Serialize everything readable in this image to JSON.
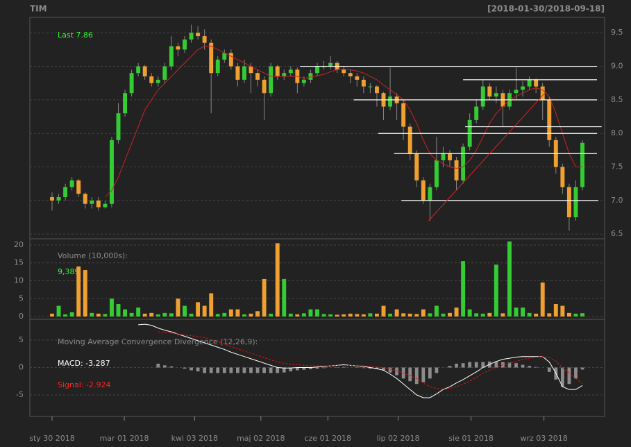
{
  "chart_data": [
    {
      "type": "candlestick",
      "title": "TIM",
      "subtitle": "[2018-01-30/2018-09-18]",
      "annotation": "Last 7.86",
      "up_color": "#33cc33",
      "down_color": "#f0a030",
      "sma_color": "#cc2222",
      "hline_color": "#ffffff",
      "trend_color": "#dd2222",
      "grid": true,
      "xlim": [
        -3.35,
        83.35
      ],
      "ylim": [
        6.44,
        9.73
      ],
      "yticks": [
        6.5,
        {
          "value": 7,
          "label": "7.0"
        },
        7.5,
        {
          "value": 8,
          "label": "8.0"
        },
        8.5,
        {
          "value": 9,
          "label": "9.0"
        },
        9.5
      ],
      "open": [
        7.05,
        7.0,
        7.05,
        7.2,
        7.3,
        7.1,
        6.95,
        7.0,
        6.9,
        6.95,
        7.9,
        8.3,
        8.6,
        8.9,
        9.0,
        8.85,
        8.75,
        8.8,
        9.0,
        9.3,
        9.25,
        9.4,
        9.5,
        9.45,
        9.35,
        8.9,
        9.1,
        9.2,
        9.0,
        8.8,
        9.0,
        8.9,
        8.8,
        8.6,
        9.0,
        8.85,
        8.9,
        8.95,
        8.75,
        8.8,
        8.9,
        9.0,
        9.0,
        9.05,
        8.95,
        8.9,
        8.85,
        8.8,
        8.7,
        8.7,
        8.6,
        8.4,
        8.55,
        8.45,
        8.1,
        7.7,
        7.3,
        7.0,
        7.2,
        7.6,
        7.7,
        7.6,
        7.3,
        7.8,
        8.2,
        8.4,
        8.7,
        8.55,
        8.6,
        8.4,
        8.6,
        8.65,
        8.7,
        8.8,
        8.7,
        8.5,
        7.9,
        7.5,
        7.2,
        6.75,
        7.2
      ],
      "high": [
        7.12,
        7.1,
        7.25,
        7.35,
        7.32,
        7.12,
        7.05,
        7.05,
        7.0,
        7.95,
        8.45,
        8.65,
        8.95,
        9.05,
        9.02,
        8.9,
        8.85,
        9.05,
        9.45,
        9.35,
        9.45,
        9.62,
        9.6,
        9.55,
        9.4,
        9.15,
        9.25,
        9.25,
        9.05,
        9.1,
        9.05,
        8.95,
        8.85,
        9.05,
        9.02,
        8.95,
        9.0,
        8.98,
        8.85,
        8.95,
        9.05,
        9.08,
        9.15,
        9.08,
        9.0,
        8.95,
        8.9,
        8.85,
        8.75,
        8.72,
        8.62,
        8.98,
        8.6,
        8.5,
        8.15,
        7.75,
        7.35,
        7.25,
        7.95,
        7.8,
        7.75,
        7.65,
        7.85,
        8.3,
        8.5,
        8.8,
        8.75,
        8.7,
        8.65,
        8.65,
        8.98,
        8.78,
        8.85,
        8.82,
        8.75,
        8.55,
        7.95,
        7.55,
        7.25,
        7.3,
        7.9
      ],
      "low": [
        6.85,
        6.95,
        7.0,
        7.15,
        7.05,
        6.88,
        6.88,
        6.85,
        6.88,
        6.9,
        7.85,
        8.25,
        8.55,
        8.85,
        8.8,
        8.7,
        8.7,
        8.75,
        8.95,
        9.15,
        9.2,
        9.35,
        9.4,
        9.25,
        8.3,
        8.85,
        9.05,
        8.95,
        8.7,
        8.75,
        8.6,
        8.7,
        8.2,
        8.55,
        8.8,
        8.8,
        8.85,
        8.6,
        8.7,
        8.75,
        8.85,
        8.95,
        8.95,
        8.9,
        8.85,
        8.75,
        8.7,
        8.6,
        8.6,
        8.4,
        8.2,
        8.35,
        8.2,
        7.9,
        7.6,
        7.2,
        6.95,
        6.7,
        7.15,
        7.5,
        7.5,
        7.15,
        7.25,
        7.75,
        8.15,
        8.35,
        8.5,
        8.45,
        8.1,
        8.35,
        8.5,
        8.55,
        8.65,
        8.6,
        8.2,
        7.8,
        7.4,
        7.1,
        6.55,
        6.7,
        7.15
      ],
      "close": [
        7.0,
        7.05,
        7.2,
        7.3,
        7.1,
        6.95,
        7.0,
        6.9,
        6.95,
        7.9,
        8.3,
        8.6,
        8.9,
        9.0,
        8.85,
        8.75,
        8.8,
        9.0,
        9.3,
        9.25,
        9.4,
        9.5,
        9.45,
        9.35,
        8.9,
        9.1,
        9.2,
        9.0,
        8.8,
        9.0,
        8.9,
        8.8,
        8.6,
        9.0,
        8.85,
        8.9,
        8.95,
        8.75,
        8.8,
        8.9,
        9.0,
        9.0,
        9.05,
        8.95,
        8.9,
        8.85,
        8.8,
        8.7,
        8.7,
        8.6,
        8.4,
        8.55,
        8.45,
        8.1,
        7.7,
        7.3,
        7.0,
        7.2,
        7.6,
        7.7,
        7.6,
        7.3,
        7.8,
        8.2,
        8.4,
        8.7,
        8.55,
        8.6,
        8.4,
        8.6,
        8.65,
        8.7,
        8.8,
        8.7,
        8.5,
        7.9,
        7.5,
        7.2,
        6.75,
        7.2,
        7.86
      ],
      "sma": [
        null,
        null,
        null,
        null,
        null,
        null,
        null,
        null,
        7.05,
        7.15,
        7.35,
        7.6,
        7.85,
        8.1,
        8.35,
        8.5,
        8.65,
        8.75,
        8.85,
        8.95,
        9.05,
        9.15,
        9.25,
        9.3,
        9.3,
        9.25,
        9.2,
        9.15,
        9.1,
        9.05,
        9.0,
        8.95,
        8.9,
        8.85,
        8.85,
        8.85,
        8.85,
        8.85,
        8.82,
        8.84,
        8.86,
        8.88,
        8.92,
        8.95,
        8.96,
        8.95,
        8.93,
        8.9,
        8.85,
        8.8,
        8.72,
        8.65,
        8.58,
        8.5,
        8.35,
        8.15,
        7.9,
        7.7,
        7.6,
        7.55,
        7.5,
        7.48,
        7.5,
        7.6,
        7.75,
        7.95,
        8.15,
        8.3,
        8.4,
        8.5,
        8.55,
        8.6,
        8.65,
        8.68,
        8.65,
        8.55,
        8.3,
        8.0,
        7.7,
        7.5,
        7.5
      ],
      "hlines": [
        {
          "y": 9.0,
          "x": [
            37.4,
            82.2
          ]
        },
        {
          "y": 8.8,
          "x": [
            62.0,
            82.2
          ]
        },
        {
          "y": 8.5,
          "x": [
            45.5,
            82.2
          ]
        },
        {
          "y": 8.1,
          "x": [
            62.3,
            82.9
          ]
        },
        {
          "y": 8.0,
          "x": [
            49.2,
            82.2
          ]
        },
        {
          "y": 7.7,
          "x": [
            51.6,
            82.2
          ]
        },
        {
          "y": 7.0,
          "x": [
            52.7,
            82.4
          ]
        }
      ],
      "trendline": {
        "x": [
          56.8,
          74.5
        ],
        "y": [
          6.7,
          8.62
        ]
      }
    },
    {
      "type": "bar",
      "title": "Volume (10,000s):",
      "annotation": "9,389",
      "grid": true,
      "xlim": [
        -3.35,
        83.35
      ],
      "ylim": [
        -0.58,
        21.55
      ],
      "yticks": [
        0,
        5,
        10,
        15,
        20
      ],
      "values": [
        0.8,
        3,
        0.6,
        1.2,
        14,
        13,
        1,
        0.8,
        0.7,
        5,
        3.5,
        2,
        1,
        2.5,
        0.8,
        1,
        0.6,
        1,
        0.9,
        5,
        3,
        0.8,
        4,
        3,
        6.5,
        0.7,
        1,
        2,
        2,
        0.6,
        0.8,
        1.5,
        10.5,
        0.8,
        20.5,
        10.5,
        0.8,
        0.6,
        0.9,
        2,
        2,
        0.7,
        0.6,
        0.5,
        0.6,
        0.8,
        0.7,
        0.6,
        0.9,
        0.8,
        3,
        0.8,
        2,
        0.9,
        0.8,
        0.7,
        2,
        0.9,
        3,
        0.8,
        1,
        2.5,
        15.5,
        2,
        0.9,
        0.8,
        1,
        14.5,
        0.9,
        21,
        2.5,
        2.5,
        1,
        0.8,
        9.5,
        0.9,
        3.5,
        3,
        1,
        0.8,
        0.94
      ]
    },
    {
      "type": "macd",
      "title": "Moving Average Convergence Divergence (12,26,9):",
      "grid": true,
      "hist_color": "#8c8c8c",
      "xlim": [
        -3.35,
        83.35
      ],
      "ylim": [
        -8.92,
        8.67
      ],
      "yticks": [
        -5,
        0,
        5
      ],
      "xticks": [
        {
          "value": 0,
          "label": "sty 30 2018"
        },
        {
          "value": 10.9,
          "label": "mar 01 2018"
        },
        {
          "value": 21.5,
          "label": "kwi 03 2018"
        },
        {
          "value": 31.5,
          "label": "maj 02 2018"
        },
        {
          "value": 41.6,
          "label": "cze 01 2018"
        },
        {
          "value": 52.2,
          "label": "lip 02 2018"
        },
        {
          "value": 63.2,
          "label": "sie 01 2018"
        },
        {
          "value": 74.2,
          "label": "wrz 03 2018"
        }
      ],
      "series": [
        {
          "name": "MACD: -3.287",
          "color": "#ffffff",
          "values": [
            null,
            null,
            null,
            null,
            null,
            null,
            null,
            null,
            null,
            null,
            null,
            null,
            null,
            7.8,
            7.9,
            7.7,
            7.2,
            6.8,
            6.5,
            6.1,
            5.7,
            5.3,
            4.9,
            4.5,
            4.1,
            3.7,
            3.3,
            2.8,
            2.4,
            2.0,
            1.6,
            1.2,
            0.8,
            0.4,
            0.0,
            -0.1,
            -0.1,
            0.0,
            0.0,
            0.0,
            0.1,
            0.2,
            0.3,
            0.4,
            0.5,
            0.4,
            0.3,
            0.2,
            0.0,
            -0.2,
            -0.5,
            -1.2,
            -2.0,
            -3.0,
            -4.0,
            -5.0,
            -5.5,
            -5.5,
            -4.8,
            -4.0,
            -3.5,
            -2.8,
            -2.2,
            -1.5,
            -0.8,
            0.0,
            0.6,
            1.1,
            1.5,
            1.7,
            1.9,
            2.0,
            2.0,
            2.0,
            2.0,
            1.0,
            -1.0,
            -3.5,
            -4.0,
            -4.0,
            -3.287
          ]
        },
        {
          "name": "Signal: -2.924",
          "color": "#dd1111",
          "values": [
            null,
            null,
            null,
            null,
            null,
            null,
            null,
            null,
            null,
            null,
            null,
            null,
            null,
            null,
            null,
            null,
            6.5,
            6.4,
            6.3,
            6.1,
            5.9,
            5.8,
            5.6,
            5.5,
            5.1,
            4.7,
            4.3,
            3.8,
            3.4,
            3.0,
            2.6,
            2.2,
            1.8,
            1.4,
            1.0,
            0.8,
            0.6,
            0.5,
            0.4,
            0.3,
            0.3,
            0.3,
            0.3,
            0.35,
            0.4,
            0.4,
            0.35,
            0.3,
            0.2,
            0.1,
            0.0,
            -0.3,
            -0.6,
            -1.0,
            -1.5,
            -2.0,
            -2.8,
            -3.5,
            -3.8,
            -4.0,
            -3.8,
            -3.5,
            -3.0,
            -2.5,
            -1.8,
            -1.0,
            -0.5,
            0.0,
            0.5,
            0.8,
            1.1,
            1.5,
            1.7,
            1.9,
            2.0,
            1.8,
            1.2,
            0.0,
            -1.0,
            -2.0,
            -2.924
          ]
        }
      ],
      "histogram": [
        null,
        null,
        null,
        null,
        null,
        null,
        null,
        null,
        null,
        null,
        null,
        null,
        null,
        null,
        null,
        null,
        0.7,
        0.4,
        0.2,
        0.0,
        -0.2,
        -0.5,
        -0.7,
        -1.0,
        -1.0,
        -1.0,
        -1.0,
        -1.0,
        -1.0,
        -1.0,
        -1.0,
        -1.0,
        -1.0,
        -1.0,
        -1.0,
        -0.9,
        -0.7,
        -0.5,
        -0.4,
        -0.3,
        -0.2,
        -0.1,
        0.0,
        0.05,
        0.1,
        0.0,
        -0.05,
        -0.1,
        -0.2,
        -0.3,
        -0.5,
        -0.9,
        -1.4,
        -2.0,
        -2.5,
        -3.0,
        -2.7,
        -2.0,
        -1.0,
        0.0,
        0.3,
        0.7,
        0.8,
        1.0,
        1.0,
        1.0,
        1.1,
        1.1,
        1.0,
        0.9,
        0.8,
        0.5,
        0.3,
        0.1,
        0.0,
        -0.8,
        -2.2,
        -3.5,
        -3.0,
        -2.0,
        -0.363
      ]
    }
  ]
}
